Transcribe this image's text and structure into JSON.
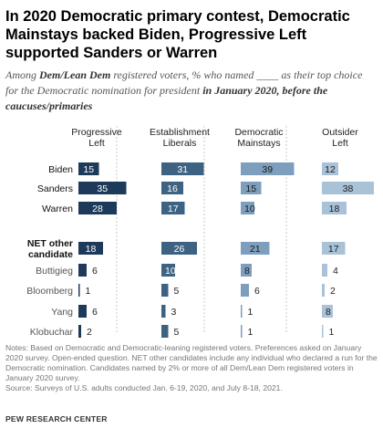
{
  "header": {
    "title": "In 2020 Democratic primary contest, Democratic Mainstays backed Biden, Progressive Left supported Sanders or Warren",
    "subtitle_pre": "Among ",
    "subtitle_emph1": "Dem/Lean Dem",
    "subtitle_mid": " registered voters, % who named ____ as their top choice for the Democratic nomination for president ",
    "subtitle_emph2": "in January 2020, before the caucuses/primaries"
  },
  "chart_data": {
    "type": "bar",
    "title": "",
    "xlabel": "",
    "ylabel": "",
    "grid": false,
    "categories": [
      "Biden",
      "Sanders",
      "Warren",
      "NET other candidate",
      "Buttigieg",
      "Bloomberg",
      "Yang",
      "Klobuchar"
    ],
    "category_lines": [
      [
        "Biden"
      ],
      [
        "Sanders"
      ],
      [
        "Warren"
      ],
      [
        "NET other",
        "candidate"
      ],
      [
        "Buttigieg"
      ],
      [
        "Bloomberg"
      ],
      [
        "Yang"
      ],
      [
        "Klobuchar"
      ]
    ],
    "series": [
      {
        "name": "Progressive Left",
        "header_lines": [
          "Progressive",
          "Left"
        ],
        "color": "#1e3a5a",
        "values": [
          15,
          35,
          28,
          18,
          6,
          1,
          6,
          2
        ]
      },
      {
        "name": "Establishment Liberals",
        "header_lines": [
          "Establishment",
          "Liberals"
        ],
        "color": "#3d6282",
        "values": [
          31,
          16,
          17,
          26,
          10,
          5,
          3,
          5
        ]
      },
      {
        "name": "Democratic Mainstays",
        "header_lines": [
          "Democratic",
          "Mainstays"
        ],
        "color": "#7d9fbd",
        "values": [
          39,
          15,
          10,
          21,
          8,
          6,
          1,
          1
        ]
      },
      {
        "name": "Outsider Left",
        "header_lines": [
          "Outsider",
          "Left"
        ],
        "color": "#a9c2d8",
        "values": [
          12,
          38,
          18,
          17,
          4,
          2,
          8,
          1
        ]
      }
    ]
  },
  "notes": {
    "text": "Notes: Based on Democratic and Democratic-leaning registered voters. Preferences asked on January 2020 survey. Open-ended question. NET other candidates include any individual who declared a run for the Democratic nomination. Candidates named by 2% or more of all Dem/Lean Dem registered voters in January 2020 survey.",
    "source": "Source: Surveys of U.S. adults conducted Jan. 6-19, 2020, and July 8-18, 2021."
  },
  "footer": {
    "brand": "PEW RESEARCH CENTER"
  }
}
